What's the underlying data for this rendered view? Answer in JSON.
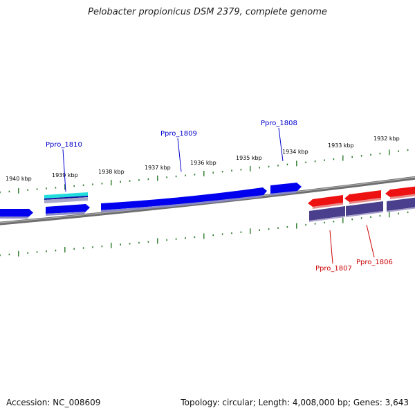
{
  "title": "Pelobacter propionicus DSM 2379, complete genome",
  "footer": {
    "accession": "Accession: NC_008609",
    "summary": "Topology: circular; Length: 4,008,000 bp; Genes: 3,643"
  },
  "kbp_labels": [
    {
      "kbp": 1940,
      "text": "1940 kbp"
    },
    {
      "kbp": 1939,
      "text": "1939 kbp"
    },
    {
      "kbp": 1938,
      "text": "1938 kbp"
    },
    {
      "kbp": 1937,
      "text": "1937 kbp"
    },
    {
      "kbp": 1936,
      "text": "1936 kbp"
    },
    {
      "kbp": 1935,
      "text": "1935 kbp"
    },
    {
      "kbp": 1934,
      "text": "1934 kbp"
    },
    {
      "kbp": 1933,
      "text": "1933 kbp"
    },
    {
      "kbp": 1932,
      "text": "1932 kbp"
    }
  ],
  "gene_labels": [
    {
      "name": "Ppro_1810",
      "strand": "forward"
    },
    {
      "name": "Ppro_1809",
      "strand": "forward"
    },
    {
      "name": "Ppro_1808",
      "strand": "forward"
    },
    {
      "name": "Ppro_1807",
      "strand": "reverse"
    },
    {
      "name": "Ppro_1806",
      "strand": "reverse"
    }
  ],
  "colors": {
    "forward_gene": "#0000ee",
    "forward_label": "#0000cc",
    "reverse_gene": "#ee1111",
    "reverse_label": "#cc0000",
    "reverse_cds": "#4a3f8c",
    "rna_gene": "#22dddd",
    "backbone": "#808080",
    "ticks": "#2a7a2a"
  }
}
